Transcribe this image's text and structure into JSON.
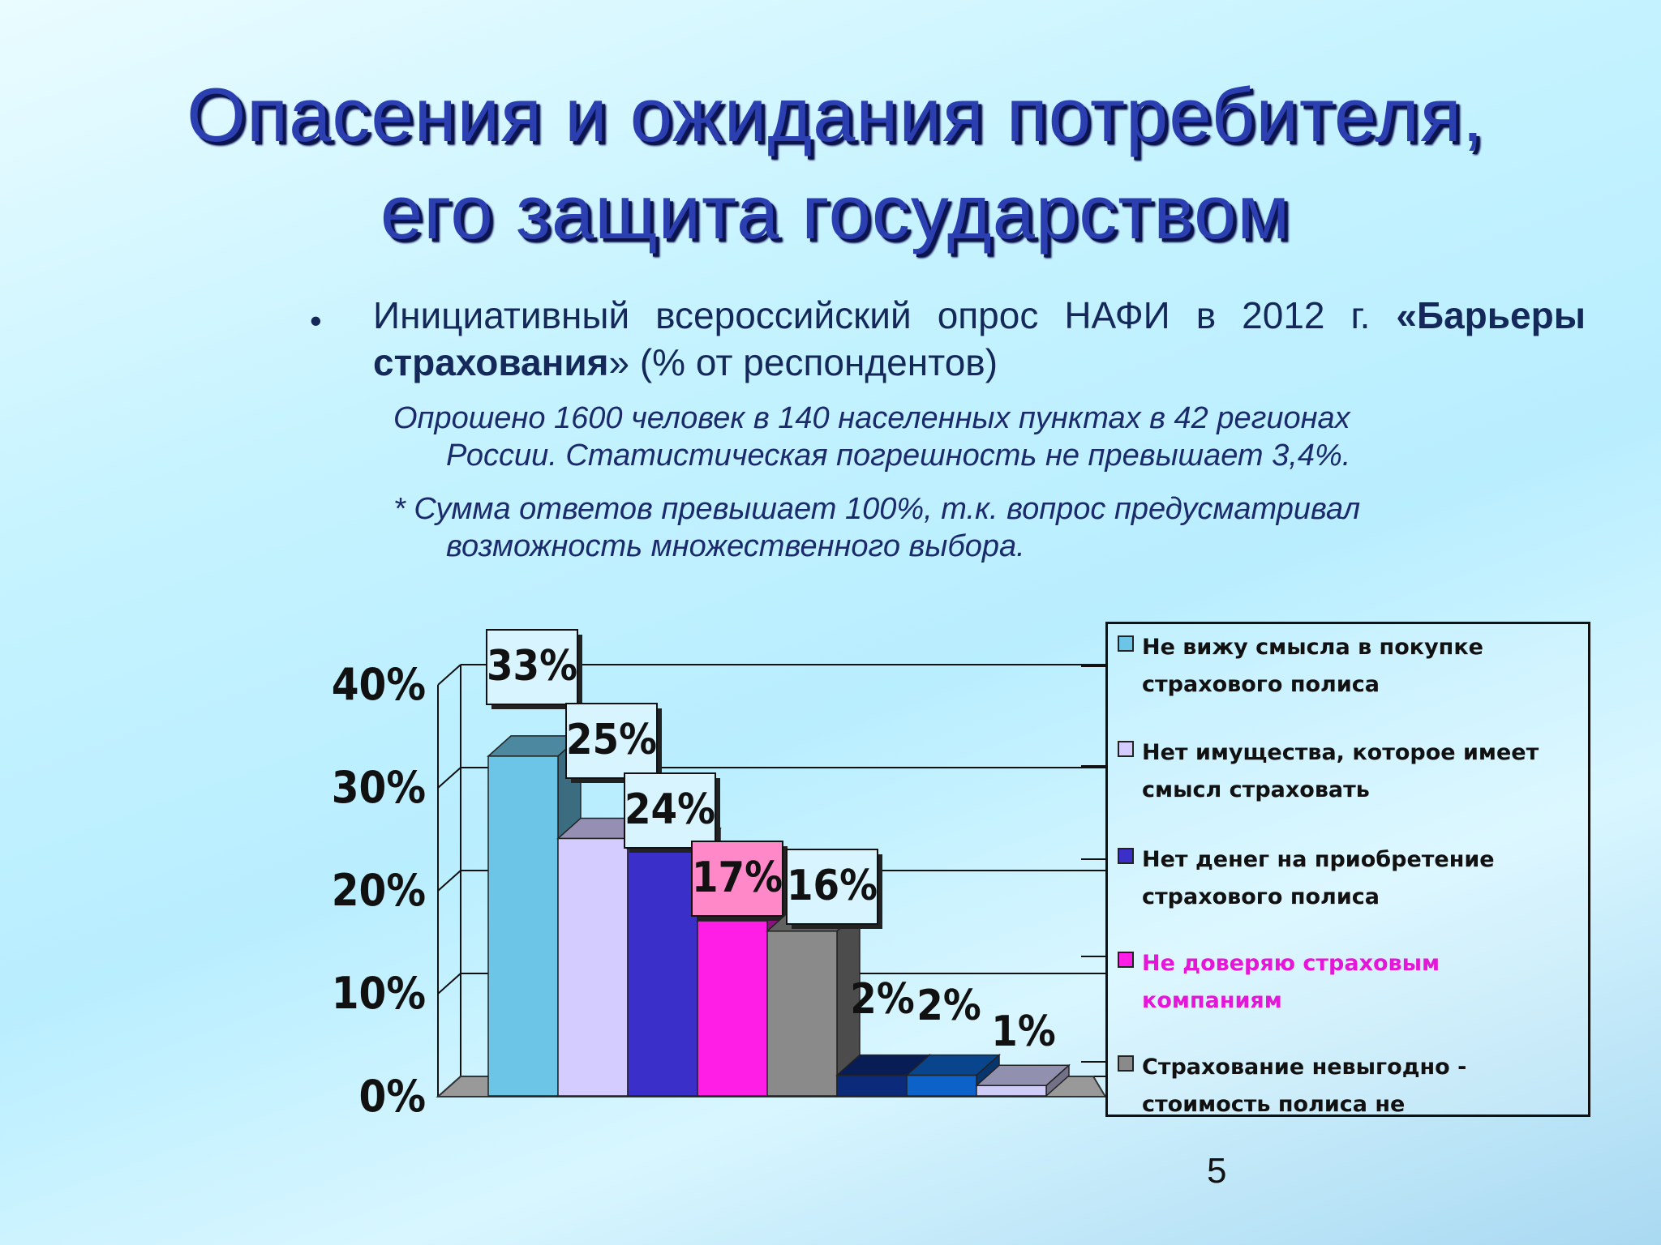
{
  "title": {
    "line1": "Опасения и ожидания потребителя,",
    "line2": "его защита государством"
  },
  "bullet": {
    "marker": "•",
    "intro": "Инициативный всероссийский опрос НАФИ в 2012 г.",
    "survey_name": "«Барьеры страхования",
    "suffix": "» (% от респондентов)"
  },
  "notes": {
    "sample_line1": "Опрошено 1600 человек в 140 населенных пунктах в 42 регионах",
    "sample_line2": "России. Статистическая погрешность не превышает 3,4%.",
    "sum_line1": "* Сумма ответов превышает 100%, т.к. вопрос предусматривал",
    "sum_line2": "возможность множественного выбора."
  },
  "page_number": "5",
  "chart_data": {
    "type": "bar",
    "ylim": [
      0,
      40
    ],
    "yticks": [
      "0%",
      "10%",
      "20%",
      "30%",
      "40%"
    ],
    "legend_position": "right",
    "series": [
      {
        "name": "Не вижу смысла в покупке страхового полиса",
        "value": 33,
        "label": "33%",
        "color": "#6cc4e6"
      },
      {
        "name": "Нет имущества, которое имеет смысл страховать",
        "value": 25,
        "label": "25%",
        "color": "#d4ccff"
      },
      {
        "name": "Нет денег на приобретение страхового полиса",
        "value": 24,
        "label": "24%",
        "color": "#3a2fc8"
      },
      {
        "name": "Не доверяю страховым компаниям",
        "value": 17,
        "label": "17%",
        "color": "#ff1ee6"
      },
      {
        "name": "Страхование невыгодно - стоимость полиса не оправдывает возможные",
        "value": 16,
        "label": "16%",
        "color": "#8a8a8a"
      },
      {
        "name": "",
        "value": 2,
        "label": "2%",
        "color": "#0c2a7a"
      },
      {
        "name": "",
        "value": 2,
        "label": "2%",
        "color": "#0c62c8"
      },
      {
        "name": "",
        "value": 1,
        "label": "1%",
        "color": "#cfcdf8"
      }
    ],
    "legend_text_colors": [
      "#111111",
      "#111111",
      "#111111",
      "#e616d8",
      "#111111"
    ],
    "label_boxes": [
      "#d8f4ff",
      "#d8f4ff",
      "#d8f4ff",
      "#ff88c8",
      "#d8f4ff",
      "none",
      "none",
      "none"
    ]
  }
}
